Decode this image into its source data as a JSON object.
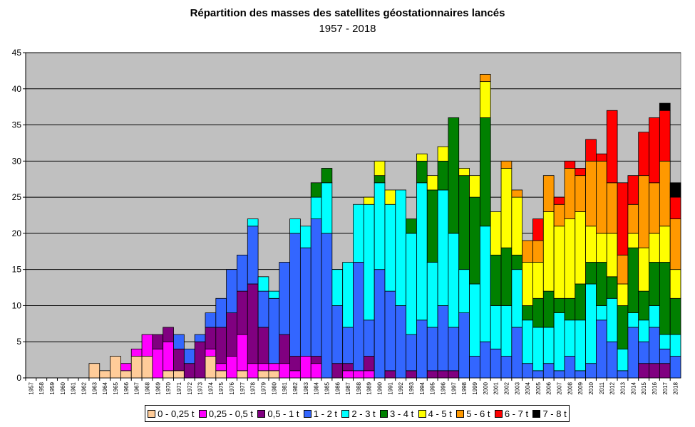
{
  "chart_data": {
    "type": "bar",
    "stacked": true,
    "title": "Répartition des masses des satellites géostationnaires lancés",
    "subtitle": "1957 - 2018",
    "xlabel": "",
    "ylabel": "",
    "ylim": [
      0,
      45
    ],
    "yticks": [
      0,
      5,
      10,
      15,
      20,
      25,
      30,
      35,
      40,
      45
    ],
    "grid": true,
    "legend_position": "bottom",
    "background_color": "#c0c0c0",
    "categories": [
      "1957",
      "1958",
      "1959",
      "1960",
      "1961",
      "1962",
      "1963",
      "1964",
      "1965",
      "1966",
      "1967",
      "1968",
      "1969",
      "1970",
      "1971",
      "1972",
      "1973",
      "1974",
      "1975",
      "1976",
      "1977",
      "1978",
      "1979",
      "1980",
      "1981",
      "1982",
      "1983",
      "1984",
      "1985",
      "1986",
      "1987",
      "1988",
      "1989",
      "1990",
      "1991",
      "1992",
      "1993",
      "1994",
      "1995",
      "1996",
      "1997",
      "1998",
      "1999",
      "2000",
      "2001",
      "2002",
      "2003",
      "2004",
      "2005",
      "2006",
      "2007",
      "2008",
      "2009",
      "2010",
      "2011",
      "2012",
      "2013",
      "2014",
      "2015",
      "2016",
      "2017",
      "2018"
    ],
    "series": [
      {
        "name": "0 - 0,25 t",
        "color": "#ffcc99",
        "values": [
          0,
          0,
          0,
          0,
          0,
          0,
          2,
          1,
          3,
          1,
          3,
          3,
          0,
          1,
          1,
          0,
          0,
          3,
          1,
          0,
          1,
          0,
          1,
          1,
          0,
          0,
          0,
          0,
          0,
          0,
          0,
          0,
          0,
          0,
          0,
          0,
          0,
          0,
          0,
          0,
          0,
          0,
          0,
          0,
          0,
          0,
          0,
          0,
          0,
          0,
          0,
          0,
          0,
          0,
          0,
          0,
          0,
          0,
          0,
          0,
          0,
          0
        ]
      },
      {
        "name": "0,25 - 0,5 t",
        "color": "#ff00ff",
        "values": [
          0,
          0,
          0,
          0,
          0,
          0,
          0,
          0,
          0,
          1,
          1,
          3,
          4,
          4,
          0,
          0,
          0,
          1,
          1,
          3,
          5,
          2,
          1,
          1,
          2,
          1,
          3,
          2,
          0,
          0,
          1,
          1,
          1,
          0,
          0,
          0,
          0,
          0,
          0,
          0,
          0,
          0,
          0,
          0,
          0,
          0,
          0,
          0,
          0,
          0,
          0,
          0,
          0,
          0,
          0,
          0,
          0,
          0,
          0,
          0,
          0,
          0
        ]
      },
      {
        "name": "0,5 - 1 t",
        "color": "#800080",
        "values": [
          0,
          0,
          0,
          0,
          0,
          0,
          0,
          0,
          0,
          0,
          0,
          0,
          2,
          2,
          3,
          2,
          5,
          3,
          5,
          6,
          6,
          11,
          5,
          0,
          4,
          2,
          0,
          1,
          0,
          2,
          1,
          0,
          2,
          0,
          1,
          0,
          1,
          0,
          1,
          1,
          1,
          0,
          0,
          0,
          0,
          0,
          0,
          0,
          0,
          0,
          0,
          0,
          0,
          0,
          0,
          0,
          0,
          0,
          2,
          2,
          2,
          0
        ]
      },
      {
        "name": "1 - 2 t",
        "color": "#3366ff",
        "values": [
          0,
          0,
          0,
          0,
          0,
          0,
          0,
          0,
          0,
          0,
          0,
          0,
          0,
          0,
          2,
          2,
          1,
          2,
          4,
          6,
          5,
          8,
          5,
          9,
          10,
          17,
          15,
          19,
          20,
          8,
          5,
          15,
          5,
          15,
          11,
          10,
          5,
          8,
          6,
          9,
          6,
          9,
          3,
          5,
          4,
          3,
          7,
          2,
          1,
          2,
          1,
          3,
          1,
          2,
          8,
          5,
          1,
          7,
          3,
          5,
          2,
          3
        ]
      },
      {
        "name": "2 - 3 t",
        "color": "#00ffff",
        "values": [
          0,
          0,
          0,
          0,
          0,
          0,
          0,
          0,
          0,
          0,
          0,
          0,
          0,
          0,
          0,
          0,
          0,
          0,
          0,
          0,
          0,
          1,
          2,
          1,
          0,
          2,
          3,
          3,
          7,
          5,
          9,
          8,
          16,
          12,
          12,
          16,
          14,
          19,
          9,
          16,
          13,
          6,
          10,
          16,
          6,
          7,
          8,
          6,
          6,
          5,
          8,
          5,
          7,
          11,
          2,
          6,
          3,
          2,
          3,
          3,
          2,
          3
        ]
      },
      {
        "name": "3 - 4 t",
        "color": "#008000",
        "values": [
          0,
          0,
          0,
          0,
          0,
          0,
          0,
          0,
          0,
          0,
          0,
          0,
          0,
          0,
          0,
          0,
          0,
          0,
          0,
          0,
          0,
          0,
          0,
          0,
          0,
          0,
          0,
          2,
          2,
          0,
          0,
          0,
          0,
          1,
          0,
          0,
          2,
          3,
          10,
          4,
          16,
          13,
          12,
          15,
          7,
          8,
          2,
          2,
          4,
          5,
          2,
          3,
          5,
          3,
          6,
          3,
          6,
          9,
          4,
          6,
          10,
          5
        ]
      },
      {
        "name": "4 - 5 t",
        "color": "#ffff00",
        "values": [
          0,
          0,
          0,
          0,
          0,
          0,
          0,
          0,
          0,
          0,
          0,
          0,
          0,
          0,
          0,
          0,
          0,
          0,
          0,
          0,
          0,
          0,
          0,
          0,
          0,
          0,
          0,
          0,
          0,
          0,
          0,
          0,
          1,
          2,
          2,
          0,
          0,
          1,
          2,
          2,
          0,
          1,
          3,
          5,
          6,
          11,
          8,
          6,
          5,
          11,
          10,
          11,
          10,
          5,
          4,
          6,
          3,
          2,
          6,
          4,
          5,
          4
        ]
      },
      {
        "name": "5 - 6 t",
        "color": "#ff9900",
        "values": [
          0,
          0,
          0,
          0,
          0,
          0,
          0,
          0,
          0,
          0,
          0,
          0,
          0,
          0,
          0,
          0,
          0,
          0,
          0,
          0,
          0,
          0,
          0,
          0,
          0,
          0,
          0,
          0,
          0,
          0,
          0,
          0,
          0,
          0,
          0,
          0,
          0,
          0,
          0,
          0,
          0,
          0,
          0,
          1,
          0,
          1,
          1,
          3,
          3,
          5,
          3,
          7,
          5,
          9,
          10,
          7,
          4,
          4,
          10,
          7,
          9,
          7
        ]
      },
      {
        "name": "6 - 7 t",
        "color": "#ff0000",
        "values": [
          0,
          0,
          0,
          0,
          0,
          0,
          0,
          0,
          0,
          0,
          0,
          0,
          0,
          0,
          0,
          0,
          0,
          0,
          0,
          0,
          0,
          0,
          0,
          0,
          0,
          0,
          0,
          0,
          0,
          0,
          0,
          0,
          0,
          0,
          0,
          0,
          0,
          0,
          0,
          0,
          0,
          0,
          0,
          0,
          0,
          0,
          0,
          0,
          3,
          0,
          1,
          1,
          1,
          3,
          1,
          10,
          10,
          4,
          6,
          9,
          7,
          3
        ]
      },
      {
        "name": "7 - 8 t",
        "color": "#000000",
        "values": [
          0,
          0,
          0,
          0,
          0,
          0,
          0,
          0,
          0,
          0,
          0,
          0,
          0,
          0,
          0,
          0,
          0,
          0,
          0,
          0,
          0,
          0,
          0,
          0,
          0,
          0,
          0,
          0,
          0,
          0,
          0,
          0,
          0,
          0,
          0,
          0,
          0,
          0,
          0,
          0,
          0,
          0,
          0,
          0,
          0,
          0,
          0,
          0,
          0,
          0,
          0,
          0,
          0,
          0,
          0,
          0,
          0,
          0,
          0,
          0,
          1,
          2
        ]
      }
    ]
  }
}
